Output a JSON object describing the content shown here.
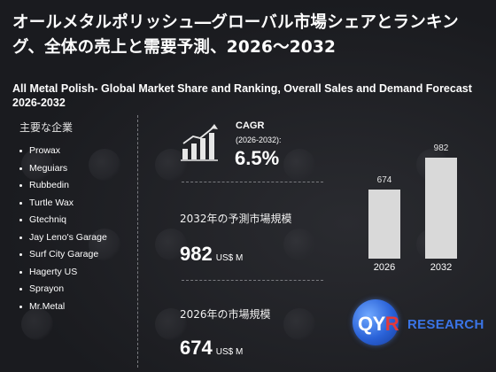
{
  "title_jp": "オールメタルポリッシュ―グローバル市場シェアとランキング、全体の売上と需要予測、2026～2032",
  "title_en": "All Metal Polish- Global Market Share and Ranking, Overall Sales and Demand Forecast 2026-2032",
  "companies": {
    "heading": "主要な企業",
    "items": [
      "Prowax",
      "Meguiars",
      "Rubbedin",
      "Turtle Wax",
      "Gtechniq",
      "Jay Leno's Garage",
      "Surf City Garage",
      "Hagerty US",
      "Sprayon",
      "Mr.Metal"
    ]
  },
  "cagr": {
    "label": "CAGR",
    "period": "(2026-2032):",
    "value": "6.5%"
  },
  "forecast": {
    "label": "2032年の予測市場規模",
    "value": "982",
    "unit": "US$ M"
  },
  "current": {
    "label": "2026年の市場規模",
    "value": "674",
    "unit": "US$ M"
  },
  "chart_data": {
    "type": "bar",
    "categories": [
      "2026",
      "2032"
    ],
    "values": [
      674,
      982
    ],
    "data_labels": [
      "674",
      "982"
    ],
    "ylim": [
      0,
      1100
    ],
    "grid": false,
    "bar_color": "#d9d9d9"
  },
  "logo": {
    "q": "QY",
    "r": "R",
    "research": "RESEARCH"
  },
  "colors": {
    "background": "#1c1d21",
    "logo_blue": "#3a74e6",
    "logo_red": "#e23a3a"
  }
}
